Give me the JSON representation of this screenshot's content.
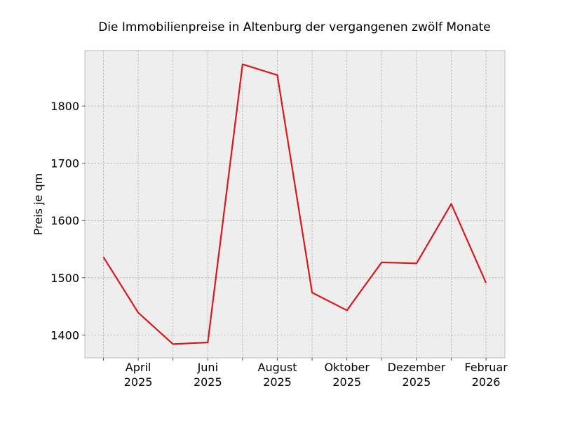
{
  "chart_data": {
    "type": "line",
    "title": "Die Immobilienpreise in Altenburg der vergangenen zwölf Monate",
    "xlabel": "",
    "ylabel": "Preis je qm",
    "x": [
      "2025-03",
      "2025-04",
      "2025-05",
      "2025-06",
      "2025-07",
      "2025-08",
      "2025-09",
      "2025-10",
      "2025-11",
      "2025-12",
      "2026-01",
      "2026-02"
    ],
    "series": [
      {
        "values": [
          1536,
          1439,
          1384,
          1387,
          1873,
          1854,
          1474,
          1443,
          1527,
          1525,
          1629,
          1491
        ],
        "color": "#d7191c"
      }
    ],
    "x_tick_labels": [
      {
        "x": "2025-04",
        "month": "April",
        "year": "2025"
      },
      {
        "x": "2025-06",
        "month": "Juni",
        "year": "2025"
      },
      {
        "x": "2025-08",
        "month": "August",
        "year": "2025"
      },
      {
        "x": "2025-10",
        "month": "Oktober",
        "year": "2025"
      },
      {
        "x": "2025-12",
        "month": "Dezember",
        "year": "2025"
      },
      {
        "x": "2026-02",
        "month": "Februar",
        "year": "2026"
      }
    ],
    "y_ticks": [
      1400,
      1500,
      1600,
      1700,
      1800
    ],
    "ylim": [
      1360,
      1897
    ],
    "grid": true,
    "background": "#eeeeee"
  }
}
